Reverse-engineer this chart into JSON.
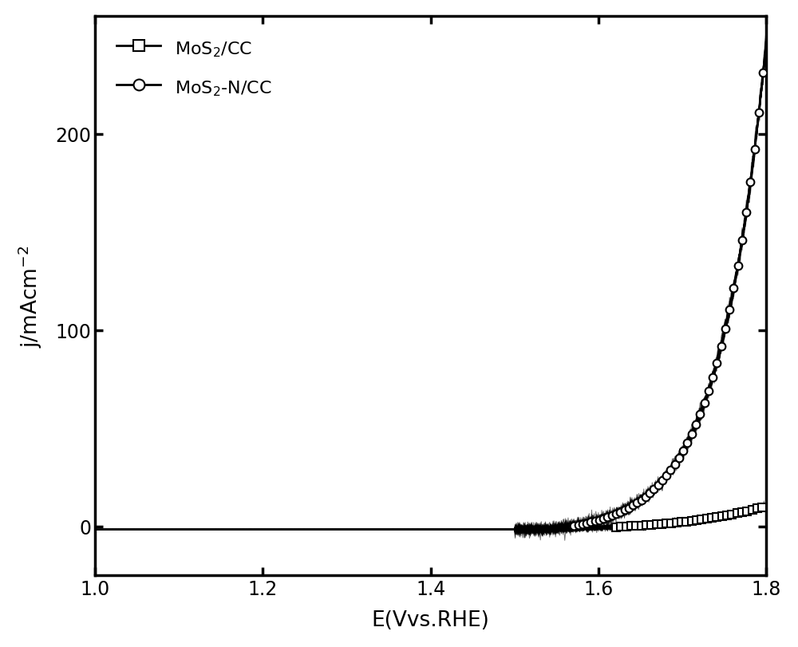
{
  "title": "",
  "xlabel": "E(Vvs.RHE)",
  "ylabel": "j/mAcm$^{-2}$",
  "xlim": [
    1.0,
    1.8
  ],
  "ylim": [
    -25,
    260
  ],
  "xticks": [
    1.0,
    1.2,
    1.4,
    1.6,
    1.8
  ],
  "yticks": [
    0,
    100,
    200
  ],
  "legend_labels": [
    "MoS$_2$/CC",
    "MoS$_2$-N/CC"
  ],
  "line_color": "#000000",
  "background_color": "#ffffff",
  "onset_mos2n": 1.535,
  "onset_mos2": 1.535,
  "max_j_mos2n": 250.0,
  "max_j_mos2": 12.0,
  "x_end": 1.8,
  "n_scan_lines": 80,
  "marker_every_n": 6,
  "marker_every_circle": 5
}
